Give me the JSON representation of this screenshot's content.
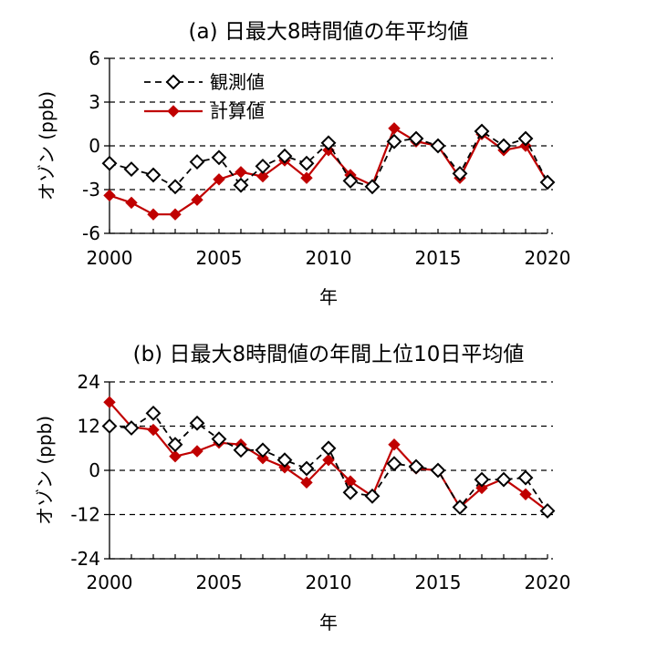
{
  "chart_data": [
    {
      "type": "line",
      "title": "(a) 日最大8時間値の年平均値",
      "xlabel": "年",
      "ylabel": "オゾン (ppb)",
      "xlim": [
        2000,
        2020
      ],
      "ylim": [
        -6,
        6
      ],
      "yticks": [
        6,
        3,
        0,
        -3,
        -6
      ],
      "xticks": [
        2000,
        2005,
        2010,
        2015,
        2020
      ],
      "grid": "horizontal dashed",
      "legend": "top-left",
      "x": [
        2000,
        2001,
        2002,
        2003,
        2004,
        2005,
        2006,
        2007,
        2008,
        2009,
        2010,
        2011,
        2012,
        2013,
        2014,
        2015,
        2016,
        2017,
        2018,
        2019,
        2020
      ],
      "series": [
        {
          "name": "観測値",
          "color": "#000000",
          "marker": "open-diamond",
          "style": "dashed",
          "values": [
            -1.2,
            -1.6,
            -2.0,
            -2.8,
            -1.1,
            -0.8,
            -2.7,
            -1.4,
            -0.7,
            -1.2,
            0.2,
            -2.4,
            -2.8,
            0.3,
            0.5,
            0.0,
            -1.9,
            1.0,
            0.0,
            0.5,
            -2.5
          ]
        },
        {
          "name": "計算値",
          "color": "#c00000",
          "marker": "filled-diamond",
          "style": "solid",
          "values": [
            -3.4,
            -3.9,
            -4.7,
            -4.7,
            -3.7,
            -2.3,
            -1.8,
            -2.1,
            -1.0,
            -2.2,
            -0.3,
            -2.0,
            -2.7,
            1.2,
            0.3,
            0.0,
            -2.2,
            0.8,
            -0.3,
            0.0,
            -2.5
          ]
        }
      ]
    },
    {
      "type": "line",
      "title": "(b) 日最大8時間値の年間上位10日平均値",
      "xlabel": "年",
      "ylabel": "オゾン (ppb)",
      "xlim": [
        2000,
        2020
      ],
      "ylim": [
        -24,
        24
      ],
      "yticks": [
        24,
        12,
        0,
        -12,
        -24
      ],
      "xticks": [
        2000,
        2005,
        2010,
        2015,
        2020
      ],
      "grid": "horizontal dashed",
      "x": [
        2000,
        2001,
        2002,
        2003,
        2004,
        2005,
        2006,
        2007,
        2008,
        2009,
        2010,
        2011,
        2012,
        2013,
        2014,
        2015,
        2016,
        2017,
        2018,
        2019,
        2020
      ],
      "series": [
        {
          "name": "観測値",
          "color": "#000000",
          "marker": "open-diamond",
          "style": "dashed",
          "values": [
            12.0,
            11.5,
            15.5,
            7.0,
            12.8,
            8.5,
            5.5,
            5.5,
            2.8,
            0.5,
            6.0,
            -6.0,
            -7.0,
            1.8,
            1.0,
            0.0,
            -10.0,
            -2.5,
            -2.5,
            -2.0,
            -11.0
          ]
        },
        {
          "name": "計算値",
          "color": "#c00000",
          "marker": "filled-diamond",
          "style": "solid",
          "values": [
            18.5,
            11.8,
            11.0,
            3.8,
            5.2,
            7.5,
            7.0,
            3.3,
            0.8,
            -3.3,
            2.8,
            -3.0,
            -7.0,
            7.0,
            0.5,
            0.0,
            -10.0,
            -4.8,
            -2.3,
            -6.5,
            -11.0
          ]
        }
      ]
    }
  ]
}
